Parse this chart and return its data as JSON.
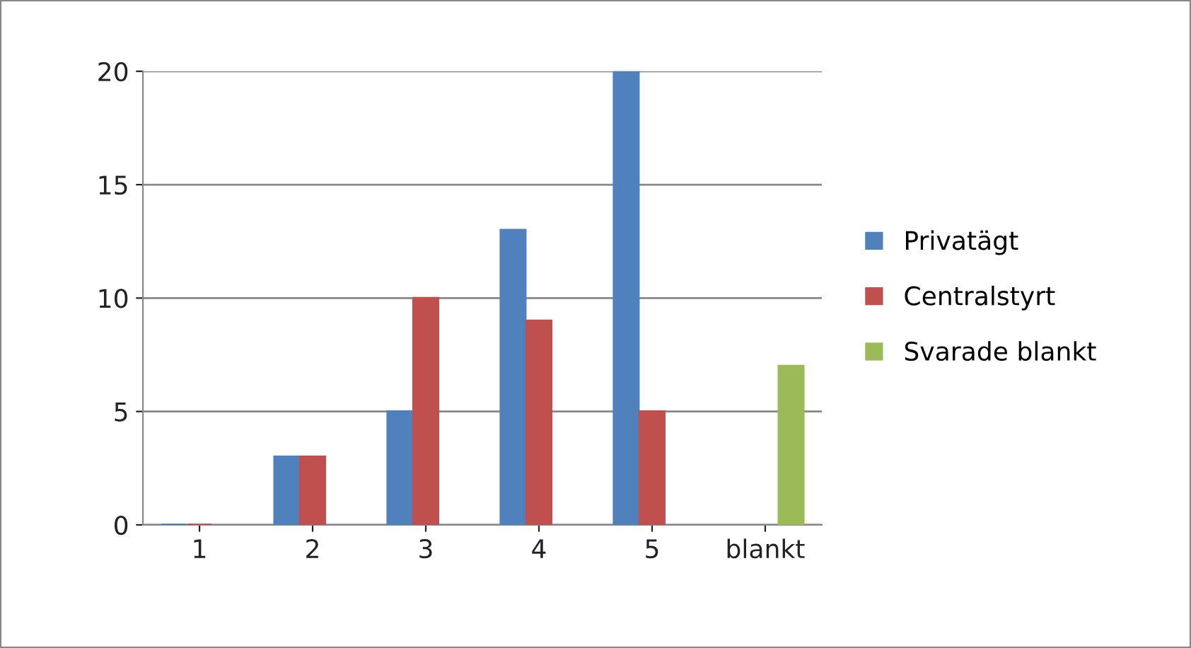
{
  "chart_data": {
    "type": "bar",
    "categories": [
      "1",
      "2",
      "3",
      "4",
      "5",
      "blankt"
    ],
    "series": [
      {
        "name": "Privatägt",
        "color": "#4f81bd",
        "values": [
          0,
          3,
          5,
          13,
          20,
          null
        ]
      },
      {
        "name": "Centralstyrt",
        "color": "#c0504d",
        "values": [
          0,
          3,
          10,
          9,
          5,
          null
        ]
      },
      {
        "name": "Svarade blankt",
        "color": "#9bbb59",
        "values": [
          null,
          null,
          null,
          null,
          null,
          7
        ]
      }
    ],
    "ylim": [
      0,
      20
    ],
    "yticks": [
      0,
      5,
      10,
      15,
      20
    ],
    "grid": "y",
    "legend": "right"
  }
}
